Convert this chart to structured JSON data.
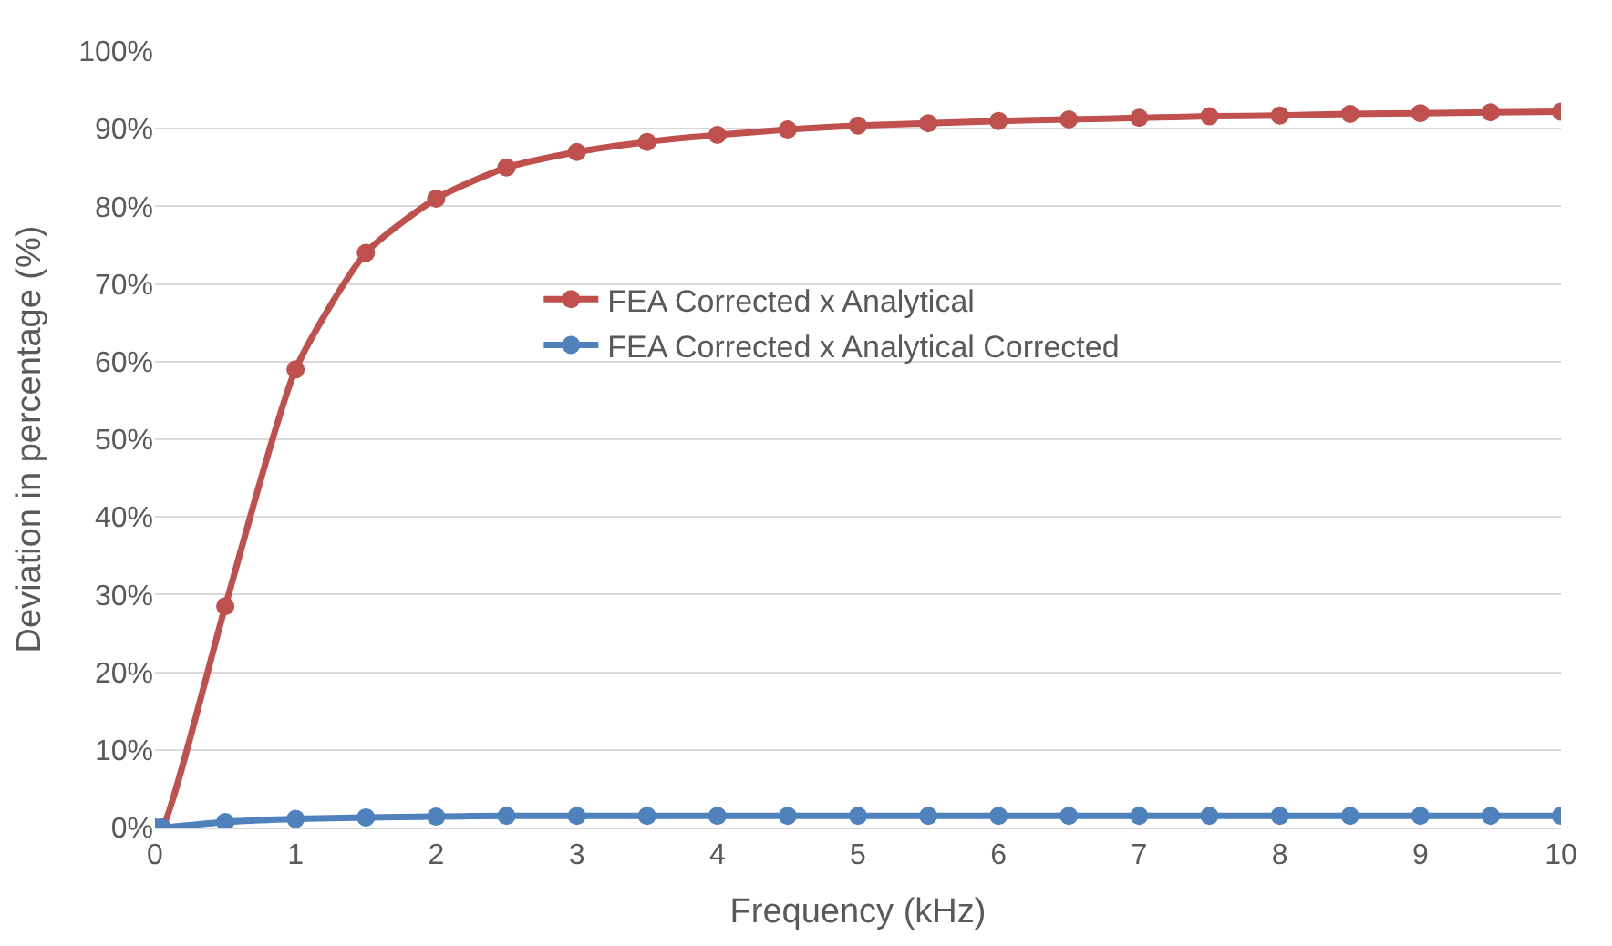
{
  "chart_data": {
    "type": "line",
    "xlabel": "Frequency (kHz)",
    "ylabel": "Deviation in percentage (%)",
    "x": [
      0,
      0.05,
      0.5,
      1,
      1.5,
      2,
      2.5,
      3,
      3.5,
      4,
      4.5,
      5,
      5.5,
      6,
      6.5,
      7,
      7.5,
      8,
      8.5,
      9,
      9.5,
      10
    ],
    "series": [
      {
        "name": "FEA Corrected x Analytical",
        "color": "#c0504d",
        "values": [
          0,
          0,
          28.5,
          59,
          74,
          81,
          85,
          87,
          88.3,
          89.2,
          89.9,
          90.4,
          90.7,
          91,
          91.2,
          91.4,
          91.6,
          91.7,
          91.9,
          92,
          92.1,
          92.2
        ]
      },
      {
        "name": "FEA Corrected x Analytical Corrected",
        "color": "#4f81bd",
        "values": [
          0,
          0,
          0.7,
          1.1,
          1.3,
          1.4,
          1.5,
          1.5,
          1.5,
          1.5,
          1.5,
          1.5,
          1.5,
          1.5,
          1.5,
          1.5,
          1.5,
          1.5,
          1.5,
          1.5,
          1.5,
          1.5
        ]
      }
    ],
    "xlim": [
      0,
      10
    ],
    "xticks": [
      0,
      1,
      2,
      3,
      4,
      5,
      6,
      7,
      8,
      9,
      10
    ],
    "ylim": [
      0,
      100
    ],
    "yticks": [
      {
        "value": 0,
        "label": "0%"
      },
      {
        "value": 10,
        "label": "10%"
      },
      {
        "value": 20,
        "label": "20%"
      },
      {
        "value": 30,
        "label": "30%"
      },
      {
        "value": 40,
        "label": "40%"
      },
      {
        "value": 50,
        "label": "50%"
      },
      {
        "value": 60,
        "label": "60%"
      },
      {
        "value": 70,
        "label": "70%"
      },
      {
        "value": 80,
        "label": "80%"
      },
      {
        "value": 90,
        "label": "90%"
      },
      {
        "value": 100,
        "label": "100%"
      }
    ],
    "grid": "y",
    "legend": "center",
    "marker": "circle",
    "line_style": "solid"
  }
}
